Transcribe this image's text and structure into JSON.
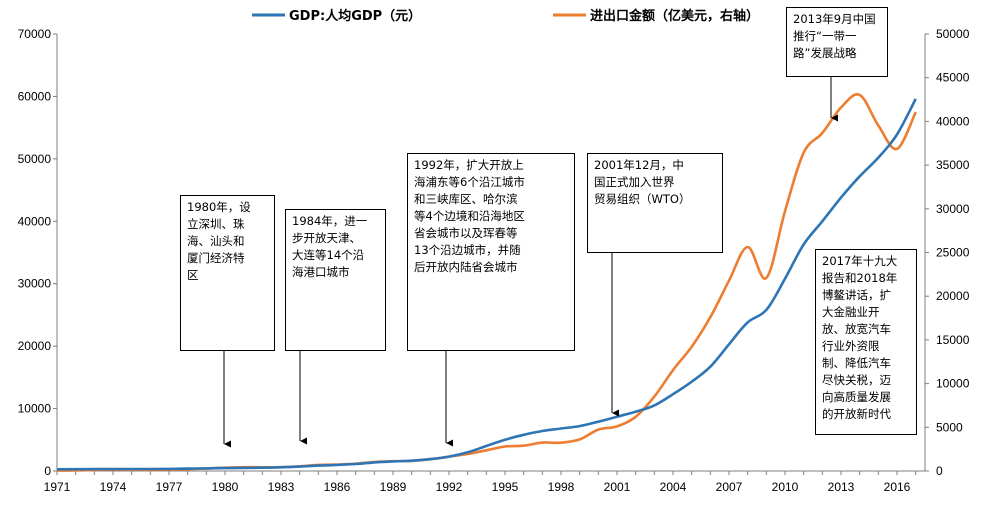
{
  "chart_data": {
    "type": "line",
    "x": [
      1971,
      1972,
      1973,
      1974,
      1975,
      1976,
      1977,
      1978,
      1979,
      1980,
      1981,
      1982,
      1983,
      1984,
      1985,
      1986,
      1987,
      1988,
      1989,
      1990,
      1991,
      1992,
      1993,
      1994,
      1995,
      1996,
      1997,
      1998,
      1999,
      2000,
      2001,
      2002,
      2003,
      2004,
      2005,
      2006,
      2007,
      2008,
      2009,
      2010,
      2011,
      2012,
      2013,
      2014,
      2015,
      2016,
      2017
    ],
    "xticks": [
      "1971",
      "1974",
      "1977",
      "1980",
      "1983",
      "1986",
      "1989",
      "1992",
      "1995",
      "1998",
      "2001",
      "2004",
      "2007",
      "2010",
      "2013",
      "2016"
    ],
    "series": [
      {
        "name": "GDP:人均GDP（元）",
        "axis": "left",
        "color": "#2E75B6",
        "values": [
          280,
          290,
          300,
          310,
          325,
          320,
          340,
          385,
          420,
          470,
          500,
          530,
          590,
          700,
          860,
          970,
          1120,
          1370,
          1540,
          1650,
          1900,
          2300,
          3000,
          4000,
          5000,
          5800,
          6400,
          6800,
          7200,
          7900,
          8700,
          9500,
          10500,
          12300,
          14300,
          16700,
          20300,
          23800,
          25800,
          30800,
          36300,
          40000,
          43800,
          47200,
          50200,
          53900,
          59600
        ]
      },
      {
        "name": "进出口金额（亿美元，右轴）",
        "axis": "right",
        "color": "#ED7D31",
        "values": [
          50,
          60,
          110,
          150,
          150,
          135,
          150,
          210,
          290,
          380,
          440,
          420,
          440,
          540,
          700,
          740,
          830,
          1030,
          1120,
          1150,
          1350,
          1650,
          1950,
          2370,
          2800,
          2900,
          3250,
          3240,
          3610,
          4740,
          5100,
          6200,
          8510,
          11550,
          14220,
          17600,
          21770,
          25630,
          22080,
          29740,
          36420,
          38670,
          41590,
          43030,
          39530,
          36850,
          41070
        ]
      }
    ],
    "y_left": {
      "ylim": [
        0,
        70000
      ],
      "ticks": [
        "0",
        "10000",
        "20000",
        "30000",
        "40000",
        "50000",
        "60000",
        "70000"
      ]
    },
    "y_right": {
      "ylim": [
        0,
        50000
      ],
      "ticks": [
        "0",
        "5000",
        "10000",
        "15000",
        "20000",
        "25000",
        "30000",
        "35000",
        "40000",
        "45000",
        "50000"
      ]
    },
    "legend_position": "top",
    "grid": false,
    "annotations": [
      {
        "text": "1980年，设\n立深圳、珠\n海、汕头和\n厦门经济特\n区",
        "year": 1980
      },
      {
        "text": "1984年，进一\n步开放天津、\n大连等14个沿\n海港口城市",
        "year": 1984
      },
      {
        "text": "1992年，扩大开放上\n海浦东等6个沿江城市\n和三峡库区、哈尔滨\n等4个边境和沿海地区\n省会城市以及珲春等\n13个沿边城市，并随\n后开放内陆省会城市",
        "year": 1992
      },
      {
        "text": "2001年12月，中\n国正式加入世界\n贸易组织（WTO）",
        "year": 2001
      },
      {
        "text": "2013年9月中国\n推行“一带一\n路”发展战略",
        "year": 2013
      },
      {
        "text": "2017年十九大\n报告和2018年\n博鳌讲话，扩\n大金融业开\n放、放宽汽车\n行业外资限\n制、降低汽车\n尽快关税，迈\n向高质量发展\n的开放新时代",
        "year": 2017
      }
    ]
  }
}
